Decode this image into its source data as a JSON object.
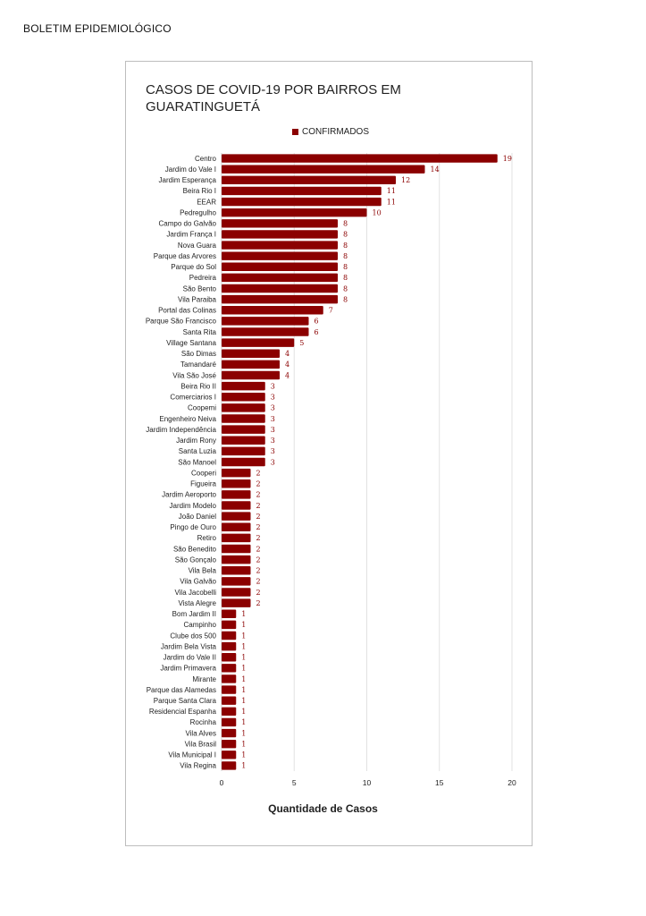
{
  "header": {
    "doc_title": "BOLETIM EPIDEMIOLÓGICO"
  },
  "chart_data": {
    "type": "bar",
    "orientation": "horizontal",
    "title": "CASOS DE COVID-19 POR BAIRROS EM GUARATINGUETÁ",
    "title_lines": [
      "CASOS DE COVID-19 POR BAIRROS EM",
      "GUARATINGUETÁ"
    ],
    "xlabel": "Quantidade de Casos",
    "ylabel": "",
    "xlim": [
      0,
      20
    ],
    "xticks": [
      0,
      5,
      10,
      15,
      20
    ],
    "grid": true,
    "legend_position": "top",
    "bar_color": "#8b0000",
    "series": [
      {
        "name": "CONFIRMADOS",
        "values": [
          19,
          14,
          12,
          11,
          11,
          10,
          8,
          8,
          8,
          8,
          8,
          8,
          8,
          8,
          7,
          6,
          6,
          5,
          4,
          4,
          4,
          3,
          3,
          3,
          3,
          3,
          3,
          3,
          3,
          2,
          2,
          2,
          2,
          2,
          2,
          2,
          2,
          2,
          2,
          2,
          2,
          2,
          1,
          1,
          1,
          1,
          1,
          1,
          1,
          1,
          1,
          1,
          1,
          1,
          1,
          1,
          1
        ]
      }
    ],
    "categories": [
      "Centro",
      "Jardim do Vale I",
      "Jardim Esperança",
      "Beira Rio I",
      "EEAR",
      "Pedregulho",
      "Campo do Galvão",
      "Jardim França I",
      "Nova Guara",
      "Parque das Arvores",
      "Parque do Sol",
      "Pedreira",
      "São Bento",
      "Vila Paraiba",
      "Portal das Colinas",
      "Parque São Francisco",
      "Santa Rita",
      "Village Santana",
      "São Dimas",
      "Tamandaré",
      "Vila São José",
      "Beira Rio II",
      "Comerciarios I",
      "Coopemi",
      "Engenheiro Neiva",
      "Jardim Independência",
      "Jardim Rony",
      "Santa Luzia",
      "São Manoel",
      "Cooperi",
      "Figueira",
      "Jardim Aeroporto",
      "Jardim Modelo",
      "João Daniel",
      "Pingo de Ouro",
      "Retiro",
      "São Benedito",
      "São Gonçalo",
      "Vila Bela",
      "Vila Galvão",
      "Vila Jacobelli",
      "Vista Alegre",
      "Bom Jardim II",
      "Campinho",
      "Clube dos 500",
      "Jardim Bela Vista",
      "Jardim do Vale II",
      "Jardim Primavera",
      "Mirante",
      "Parque das Alamedas",
      "Parque Santa Clara",
      "Residencial Espanha",
      "Rocinha",
      "Vila Alves",
      "Vila Brasil",
      "Vila Municipal I",
      "Vila Regina"
    ]
  }
}
